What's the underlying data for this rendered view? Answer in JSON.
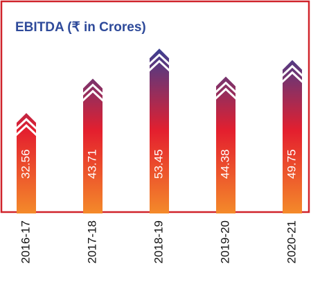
{
  "chart_data": {
    "type": "bar",
    "title": "EBITDA (₹ in Crores)",
    "categories": [
      "2016-17",
      "2017-18",
      "2018-19",
      "2019-20",
      "2020-21"
    ],
    "values": [
      32.56,
      43.71,
      53.45,
      44.38,
      49.75
    ],
    "colors": [
      "#3a3f92",
      "#e41f2e",
      "#f48a2a"
    ]
  }
}
